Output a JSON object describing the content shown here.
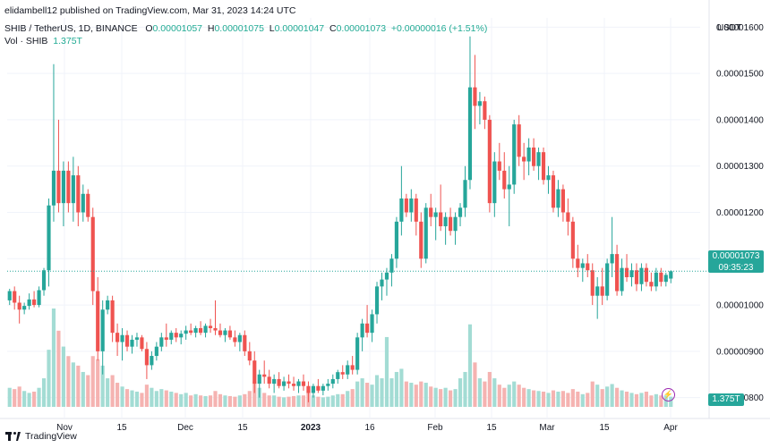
{
  "header": {
    "published": "elidambell12 published on TradingView.com, Mar 31, 2023 14:24 UTC",
    "symbol": "SHIB / TetherUS, 1D, BINANCE",
    "o_label": "O",
    "o_value": "0.00001057",
    "h_label": "H",
    "h_value": "0.00001075",
    "l_label": "L",
    "l_value": "0.00001047",
    "c_label": "C",
    "c_value": "0.00001073",
    "change": "+0.00000016 (+1.51%)",
    "vol_label": "Vol · SHIB",
    "vol_value": "1.375T"
  },
  "price_axis": {
    "currency": "USDT",
    "ticks": [
      "0.00001600",
      "0.00001500",
      "0.00001400",
      "0.00001300",
      "0.00001200",
      "0.00001100",
      "0.00001000",
      "0.00000900",
      "0.00000800"
    ]
  },
  "last_price": {
    "price": "0.00001073",
    "countdown": "09:35:23"
  },
  "volume_tag": "1.375T",
  "time_axis": {
    "labels": [
      "Nov",
      "15",
      "Dec",
      "15",
      "2023",
      "16",
      "Feb",
      "15",
      "Mar",
      "15",
      "Apr"
    ]
  },
  "branding": "TradingView",
  "colors": {
    "up": "#26a69a",
    "down": "#ef5350",
    "vol_up": "#a3dcd4",
    "vol_down": "#f5b3b1",
    "grid": "#f0f3fa"
  },
  "chart_data": {
    "type": "candlestick",
    "interval": "1D",
    "ylim": [
      7.8e-06,
      1.62e-05
    ],
    "x_start": "2022-10-17",
    "x_end": "2023-03-31",
    "grid": true,
    "candles": [
      [
        1.01e-05,
        1.035e-05,
        1e-05,
        1.03e-05,
        30
      ],
      [
        1.03e-05,
        1.04e-05,
        9.9e-06,
        1.005e-05,
        28
      ],
      [
        1.005e-05,
        1.02e-05,
        9.6e-06,
        9.9e-06,
        32
      ],
      [
        9.9e-06,
        1.005e-05,
        9.8e-06,
        9.98e-06,
        25
      ],
      [
        9.98e-06,
        1.025e-05,
        9.9e-06,
        1.012e-05,
        22
      ],
      [
        1.012e-05,
        1.03e-05,
        9.95e-06,
        1e-05,
        24
      ],
      [
        1e-05,
        1.04e-05,
        9.95e-06,
        1.032e-05,
        30
      ],
      [
        1.032e-05,
        1.08e-05,
        1.02e-05,
        1.075e-05,
        45
      ],
      [
        1.075e-05,
        1.23e-05,
        1.04e-05,
        1.215e-05,
        90
      ],
      [
        1.215e-05,
        1.52e-05,
        1.18e-05,
        1.29e-05,
        155
      ],
      [
        1.29e-05,
        1.4e-05,
        1.2e-05,
        1.22e-05,
        120
      ],
      [
        1.22e-05,
        1.31e-05,
        1.17e-05,
        1.29e-05,
        95
      ],
      [
        1.29e-05,
        1.31e-05,
        1.2e-05,
        1.22e-05,
        80
      ],
      [
        1.22e-05,
        1.32e-05,
        1.18e-05,
        1.28e-05,
        70
      ],
      [
        1.28e-05,
        1.3e-05,
        1.17e-05,
        1.2e-05,
        65
      ],
      [
        1.2e-05,
        1.26e-05,
        1.18e-05,
        1.24e-05,
        55
      ],
      [
        1.24e-05,
        1.25e-05,
        1.18e-05,
        1.19e-05,
        50
      ],
      [
        1.19e-05,
        1.21e-05,
        1e-05,
        1.03e-05,
        80
      ],
      [
        1.03e-05,
        1.06e-05,
        8.8e-06,
        9e-06,
        75
      ],
      [
        9e-06,
        1.01e-05,
        8.5e-06,
        9.9e-06,
        65
      ],
      [
        9.9e-06,
        1.02e-05,
        9.8e-06,
        1.01e-05,
        45
      ],
      [
        1.01e-05,
        1.02e-05,
        9.2e-06,
        9.4e-06,
        50
      ],
      [
        9.4e-06,
        9.6e-06,
        8.9e-06,
        9.2e-06,
        38
      ],
      [
        9.2e-06,
        9.5e-06,
        8.8e-06,
        9.35e-06,
        32
      ],
      [
        9.35e-06,
        9.45e-06,
        9e-06,
        9.1e-06,
        28
      ],
      [
        9.1e-06,
        9.35e-06,
        8.95e-06,
        9.25e-06,
        26
      ],
      [
        9.25e-06,
        9.4e-06,
        9.1e-06,
        9.3e-06,
        24
      ],
      [
        9.3e-06,
        9.35e-06,
        9e-06,
        9.05e-06,
        22
      ],
      [
        9.05e-06,
        9.2e-06,
        8.4e-06,
        8.7e-06,
        35
      ],
      [
        8.7e-06,
        9e-06,
        8.6e-06,
        8.9e-06,
        30
      ],
      [
        8.9e-06,
        9.2e-06,
        8.8e-06,
        9.1e-06,
        25
      ],
      [
        9.1e-06,
        9.4e-06,
        9e-06,
        9.3e-06,
        28
      ],
      [
        9.3e-06,
        9.6e-06,
        9.1e-06,
        9.25e-06,
        26
      ],
      [
        9.25e-06,
        9.45e-06,
        9.15e-06,
        9.4e-06,
        24
      ],
      [
        9.4e-06,
        9.5e-06,
        9.2e-06,
        9.3e-06,
        22
      ],
      [
        9.3e-06,
        9.45e-06,
        9.15e-06,
        9.38e-06,
        20
      ],
      [
        9.38e-06,
        9.55e-06,
        9.25e-06,
        9.45e-06,
        22
      ],
      [
        9.45e-06,
        9.6e-06,
        9.35e-06,
        9.4e-06,
        18
      ],
      [
        9.4e-06,
        9.55e-06,
        9.3e-06,
        9.5e-06,
        20
      ],
      [
        9.5e-06,
        9.65e-06,
        9.35e-06,
        9.4e-06,
        18
      ],
      [
        9.4e-06,
        9.6e-06,
        9.3e-06,
        9.55e-06,
        17
      ],
      [
        9.55e-06,
        9.7e-06,
        9.4e-06,
        9.5e-06,
        18
      ],
      [
        9.5e-06,
        1.01e-05,
        9.35e-06,
        9.45e-06,
        25
      ],
      [
        9.45e-06,
        9.6e-06,
        9.3e-06,
        9.35e-06,
        20
      ],
      [
        9.35e-06,
        9.5e-06,
        9.2e-06,
        9.45e-06,
        18
      ],
      [
        9.45e-06,
        9.55e-06,
        9.25e-06,
        9.3e-06,
        17
      ],
      [
        9.3e-06,
        9.45e-06,
        9.1e-06,
        9.2e-06,
        16
      ],
      [
        9.2e-06,
        9.4e-06,
        9e-06,
        9.35e-06,
        18
      ],
      [
        9.35e-06,
        9.45e-06,
        8.9e-06,
        9e-06,
        20
      ],
      [
        9e-06,
        9.2e-06,
        8.7e-06,
        8.8e-06,
        25
      ],
      [
        8.8e-06,
        9e-06,
        8.1e-06,
        8.3e-06,
        40
      ],
      [
        8.3e-06,
        8.6e-06,
        8e-06,
        8.5e-06,
        30
      ],
      [
        8.5e-06,
        8.8e-06,
        8.3e-06,
        8.45e-06,
        22
      ],
      [
        8.45e-06,
        8.6e-06,
        8.2e-06,
        8.3e-06,
        18
      ],
      [
        8.3e-06,
        8.5e-06,
        8.1e-06,
        8.4e-06,
        18
      ],
      [
        8.4e-06,
        8.55e-06,
        8.2e-06,
        8.25e-06,
        16
      ],
      [
        8.25e-06,
        8.45e-06,
        8.15e-06,
        8.35e-06,
        15
      ],
      [
        8.35e-06,
        8.5e-06,
        8.2e-06,
        8.3e-06,
        16
      ],
      [
        8.3e-06,
        8.45e-06,
        8.15e-06,
        8.25e-06,
        17
      ],
      [
        8.25e-06,
        8.4e-06,
        8.1e-06,
        8.35e-06,
        18
      ],
      [
        8.35e-06,
        8.5e-06,
        8.15e-06,
        8.25e-06,
        18
      ],
      [
        8.25e-06,
        8.35e-06,
        7.9e-06,
        8.1e-06,
        22
      ],
      [
        8.1e-06,
        8.3e-06,
        8e-06,
        8.25e-06,
        18
      ],
      [
        8.25e-06,
        8.4e-06,
        8.1e-06,
        8.15e-06,
        16
      ],
      [
        8.15e-06,
        8.3e-06,
        8.05e-06,
        8.25e-06,
        15
      ],
      [
        8.25e-06,
        8.4e-06,
        8.15e-06,
        8.3e-06,
        16
      ],
      [
        8.3e-06,
        8.5e-06,
        8.2e-06,
        8.4e-06,
        18
      ],
      [
        8.4e-06,
        8.6e-06,
        8.3e-06,
        8.55e-06,
        20
      ],
      [
        8.55e-06,
        8.7e-06,
        8.4e-06,
        8.5e-06,
        20
      ],
      [
        8.5e-06,
        8.8e-06,
        8.4e-06,
        8.7e-06,
        25
      ],
      [
        8.7e-06,
        8.9e-06,
        8.5e-06,
        8.6e-06,
        28
      ],
      [
        8.6e-06,
        9.4e-06,
        8.5e-06,
        9.3e-06,
        40
      ],
      [
        9.3e-06,
        9.7e-06,
        9e-06,
        9.6e-06,
        45
      ],
      [
        9.6e-06,
        1e-05,
        9.3e-06,
        9.4e-06,
        38
      ],
      [
        9.4e-06,
        9.9e-06,
        9.2e-06,
        9.8e-06,
        35
      ],
      [
        9.8e-06,
        1.05e-05,
        9.6e-06,
        1.04e-05,
        50
      ],
      [
        1.04e-05,
        1.07e-05,
        1.01e-05,
        1.055e-05,
        45
      ],
      [
        1.055e-05,
        1.08e-05,
        1.02e-05,
        1.07e-05,
        110
      ],
      [
        1.07e-05,
        1.11e-05,
        1.04e-05,
        1.1e-05,
        45
      ],
      [
        1.1e-05,
        1.19e-05,
        1.08e-05,
        1.18e-05,
        55
      ],
      [
        1.18e-05,
        1.3e-05,
        1.15e-05,
        1.23e-05,
        60
      ],
      [
        1.23e-05,
        1.24e-05,
        1.19e-05,
        1.2e-05,
        40
      ],
      [
        1.2e-05,
        1.25e-05,
        1.18e-05,
        1.23e-05,
        38
      ],
      [
        1.23e-05,
        1.24e-05,
        1.15e-05,
        1.18e-05,
        35
      ],
      [
        1.18e-05,
        1.2e-05,
        1.08e-05,
        1.1e-05,
        40
      ],
      [
        1.1e-05,
        1.22e-05,
        1.09e-05,
        1.21e-05,
        38
      ],
      [
        1.21e-05,
        1.24e-05,
        1.17e-05,
        1.19e-05,
        32
      ],
      [
        1.19e-05,
        1.21e-05,
        1.14e-05,
        1.2e-05,
        30
      ],
      [
        1.2e-05,
        1.26e-05,
        1.16e-05,
        1.17e-05,
        28
      ],
      [
        1.17e-05,
        1.2e-05,
        1.13e-05,
        1.19e-05,
        30
      ],
      [
        1.19e-05,
        1.21e-05,
        1.15e-05,
        1.16e-05,
        26
      ],
      [
        1.16e-05,
        1.2e-05,
        1.13e-05,
        1.19e-05,
        28
      ],
      [
        1.19e-05,
        1.22e-05,
        1.17e-05,
        1.21e-05,
        45
      ],
      [
        1.21e-05,
        1.3e-05,
        1.19e-05,
        1.27e-05,
        55
      ],
      [
        1.27e-05,
        1.58e-05,
        1.25e-05,
        1.47e-05,
        130
      ],
      [
        1.47e-05,
        1.54e-05,
        1.38e-05,
        1.43e-05,
        70
      ],
      [
        1.43e-05,
        1.46e-05,
        1.39e-05,
        1.44e-05,
        45
      ],
      [
        1.44e-05,
        1.45e-05,
        1.38e-05,
        1.4e-05,
        40
      ],
      [
        1.4e-05,
        1.41e-05,
        1.2e-05,
        1.22e-05,
        55
      ],
      [
        1.22e-05,
        1.33e-05,
        1.19e-05,
        1.31e-05,
        45
      ],
      [
        1.31e-05,
        1.35e-05,
        1.27e-05,
        1.29e-05,
        35
      ],
      [
        1.29e-05,
        1.33e-05,
        1.23e-05,
        1.25e-05,
        30
      ],
      [
        1.25e-05,
        1.3e-05,
        1.17e-05,
        1.26e-05,
        35
      ],
      [
        1.26e-05,
        1.4e-05,
        1.24e-05,
        1.39e-05,
        40
      ],
      [
        1.39e-05,
        1.41e-05,
        1.3e-05,
        1.32e-05,
        35
      ],
      [
        1.32e-05,
        1.35e-05,
        1.27e-05,
        1.31e-05,
        30
      ],
      [
        1.31e-05,
        1.36e-05,
        1.28e-05,
        1.34e-05,
        28
      ],
      [
        1.34e-05,
        1.36e-05,
        1.29e-05,
        1.3e-05,
        26
      ],
      [
        1.3e-05,
        1.34e-05,
        1.27e-05,
        1.33e-05,
        25
      ],
      [
        1.33e-05,
        1.34e-05,
        1.26e-05,
        1.27e-05,
        24
      ],
      [
        1.27e-05,
        1.3e-05,
        1.24e-05,
        1.28e-05,
        22
      ],
      [
        1.28e-05,
        1.29e-05,
        1.2e-05,
        1.21e-05,
        26
      ],
      [
        1.21e-05,
        1.27e-05,
        1.19e-05,
        1.25e-05,
        24
      ],
      [
        1.25e-05,
        1.26e-05,
        1.18e-05,
        1.2e-05,
        25
      ],
      [
        1.2e-05,
        1.23e-05,
        1.15e-05,
        1.18e-05,
        22
      ],
      [
        1.18e-05,
        1.19e-05,
        1.08e-05,
        1.1e-05,
        28
      ],
      [
        1.1e-05,
        1.13e-05,
        1.06e-05,
        1.08e-05,
        24
      ],
      [
        1.08e-05,
        1.1e-05,
        1.05e-05,
        1.09e-05,
        20
      ],
      [
        1.09e-05,
        1.11e-05,
        1.06e-05,
        1.075e-05,
        22
      ],
      [
        1.075e-05,
        1.09e-05,
        1e-05,
        1.02e-05,
        40
      ],
      [
        1.02e-05,
        1.06e-05,
        9.7e-06,
        1.04e-05,
        35
      ],
      [
        1.04e-05,
        1.08e-05,
        1e-05,
        1.02e-05,
        28
      ],
      [
        1.02e-05,
        1.1e-05,
        1.01e-05,
        1.09e-05,
        32
      ],
      [
        1.09e-05,
        1.19e-05,
        1.06e-05,
        1.11e-05,
        36
      ],
      [
        1.11e-05,
        1.13e-05,
        1.02e-05,
        1.03e-05,
        30
      ],
      [
        1.03e-05,
        1.1e-05,
        1.02e-05,
        1.08e-05,
        26
      ],
      [
        1.08e-05,
        1.11e-05,
        1.05e-05,
        1.06e-05,
        24
      ],
      [
        1.06e-05,
        1.09e-05,
        1.04e-05,
        1.075e-05,
        22
      ],
      [
        1.075e-05,
        1.09e-05,
        1.03e-05,
        1.045e-05,
        20
      ],
      [
        1.045e-05,
        1.09e-05,
        1.03e-05,
        1.08e-05,
        22
      ],
      [
        1.08e-05,
        1.09e-05,
        1.04e-05,
        1.05e-05,
        24
      ],
      [
        1.05e-05,
        1.07e-05,
        1.03e-05,
        1.04e-05,
        18
      ],
      [
        1.04e-05,
        1.08e-05,
        1.03e-05,
        1.07e-05,
        20
      ],
      [
        1.07e-05,
        1.08e-05,
        1.04e-05,
        1.05e-05,
        18
      ],
      [
        1.05e-05,
        1.07e-05,
        1.04e-05,
        1.065e-05,
        18
      ],
      [
        1.057e-05,
        1.075e-05,
        1.047e-05,
        1.073e-05,
        16
      ]
    ],
    "candle_format": [
      "open",
      "high",
      "low",
      "close",
      "volume_relative"
    ],
    "volume_unit": "relative",
    "last_volume": "1.375T"
  }
}
